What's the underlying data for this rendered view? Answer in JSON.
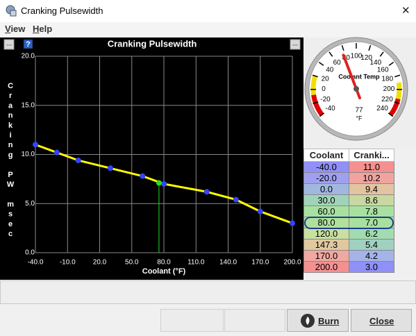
{
  "window": {
    "title": "Cranking Pulsewidth",
    "close": "✕"
  },
  "menu": [
    "View",
    "Help"
  ],
  "chart_buttons": [
    "...",
    "?",
    "..."
  ],
  "chart_data": {
    "type": "line",
    "title": "Cranking Pulsewidth",
    "xlabel": "Coolant (°F)",
    "ylabel": "Cranking PW msec",
    "x": [
      -40,
      -20,
      0,
      30,
      60,
      80,
      120,
      147.3,
      170,
      200
    ],
    "series": [
      {
        "color": "#ffff00",
        "point_color": "#3344ff",
        "values": [
          11.0,
          10.2,
          9.4,
          8.6,
          7.8,
          7.0,
          6.2,
          5.4,
          4.2,
          3.0
        ]
      }
    ],
    "xlim": [
      -40,
      200
    ],
    "ylim": [
      0,
      20
    ],
    "xticks": [
      {
        "value": -40,
        "label": "-40.0"
      },
      {
        "value": -10,
        "label": "-10.0"
      },
      {
        "value": 20,
        "label": "20.0"
      },
      {
        "value": 50,
        "label": "50.0"
      },
      {
        "value": 80,
        "label": "80.0"
      },
      {
        "value": 110,
        "label": "110.0"
      },
      {
        "value": 140,
        "label": "140.0"
      },
      {
        "value": 170,
        "label": "170.0"
      },
      {
        "value": 200,
        "label": "200.0"
      }
    ],
    "yticks": [
      {
        "value": 0,
        "label": "0.0"
      },
      {
        "value": 5,
        "label": "5.0"
      },
      {
        "value": 10,
        "label": "10.0"
      },
      {
        "value": 15,
        "label": "15.0"
      },
      {
        "value": 20,
        "label": "20.0"
      }
    ],
    "grid": true,
    "cursor": {
      "x": 75.4,
      "y": 7.1,
      "color": "#22dd22"
    }
  },
  "gauge": {
    "title": "Coolant Temp",
    "min": -40,
    "max": 240,
    "value": 77,
    "value_label": "77",
    "units": "°F",
    "ticks": [
      -40,
      -20,
      0,
      20,
      40,
      60,
      80,
      100,
      120,
      140,
      160,
      180,
      200,
      220,
      240
    ],
    "zones": [
      {
        "from": -40,
        "to": -8,
        "color": "#e00000"
      },
      {
        "from": -8,
        "to": 20,
        "color": "#f0e000"
      },
      {
        "from": 190,
        "to": 214,
        "color": "#f0e000"
      },
      {
        "from": 214,
        "to": 240,
        "color": "#e00000"
      }
    ]
  },
  "table": {
    "headers": [
      "Coolant",
      "Cranki..."
    ],
    "rows": [
      [
        "-40.0",
        "11.0"
      ],
      [
        "-20.0",
        "10.2"
      ],
      [
        "0.0",
        "9.4"
      ],
      [
        "30.0",
        "8.6"
      ],
      [
        "60.0",
        "7.8"
      ],
      [
        "80.0",
        "7.0"
      ],
      [
        "120.0",
        "6.2"
      ],
      [
        "147.3",
        "5.4"
      ],
      [
        "170.0",
        "4.2"
      ],
      [
        "200.0",
        "3.0"
      ]
    ],
    "colors": [
      [
        "#9090f8",
        "#f59090"
      ],
      [
        "#a0a0f0",
        "#f0a4a0"
      ],
      [
        "#a0b8e0",
        "#e2c4a0"
      ],
      [
        "#a0d4b8",
        "#c8d8a0"
      ],
      [
        "#a8e0a0",
        "#a8e0a0"
      ],
      [
        "#b0e09c",
        "#a8e0a0"
      ],
      [
        "#c8e0a0",
        "#a0dcb0"
      ],
      [
        "#e0c8a0",
        "#a0d0c0"
      ],
      [
        "#f0a8a0",
        "#a4b4e8"
      ],
      [
        "#f59090",
        "#9090f8"
      ]
    ],
    "selected_row": 5
  },
  "buttons": [
    "Burn",
    "Close"
  ]
}
